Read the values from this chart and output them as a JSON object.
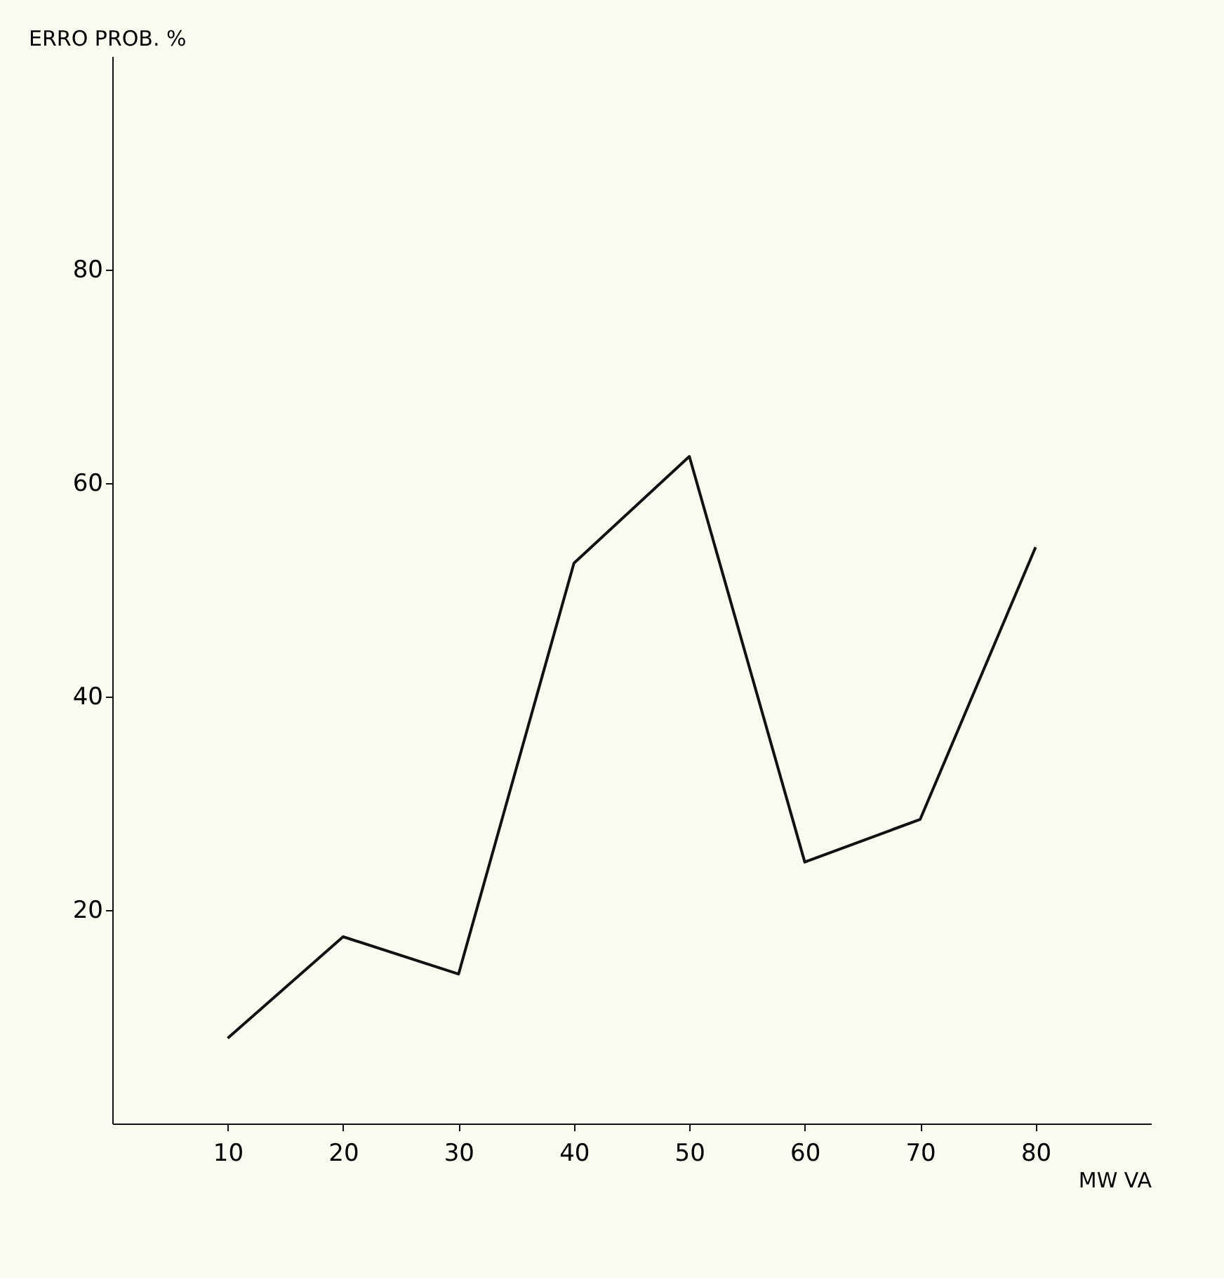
{
  "chart_data": {
    "type": "line",
    "xlabel": "MW VA",
    "ylabel": "ERRO PROB. %",
    "x": [
      10,
      20,
      30,
      40,
      50,
      60,
      70,
      80
    ],
    "series": [
      {
        "color": "#111111",
        "values": [
          8,
          17.5,
          14,
          52.5,
          62.5,
          24.5,
          28.5,
          54
        ]
      }
    ],
    "xlim": [
      0,
      90
    ],
    "xticks": [
      10,
      20,
      30,
      40,
      50,
      60,
      70,
      80
    ],
    "ylim": [
      0,
      100
    ],
    "yticks": [
      20,
      40,
      60,
      80
    ],
    "grid": false,
    "legend": false,
    "marker": "none",
    "line_style": "solid"
  }
}
